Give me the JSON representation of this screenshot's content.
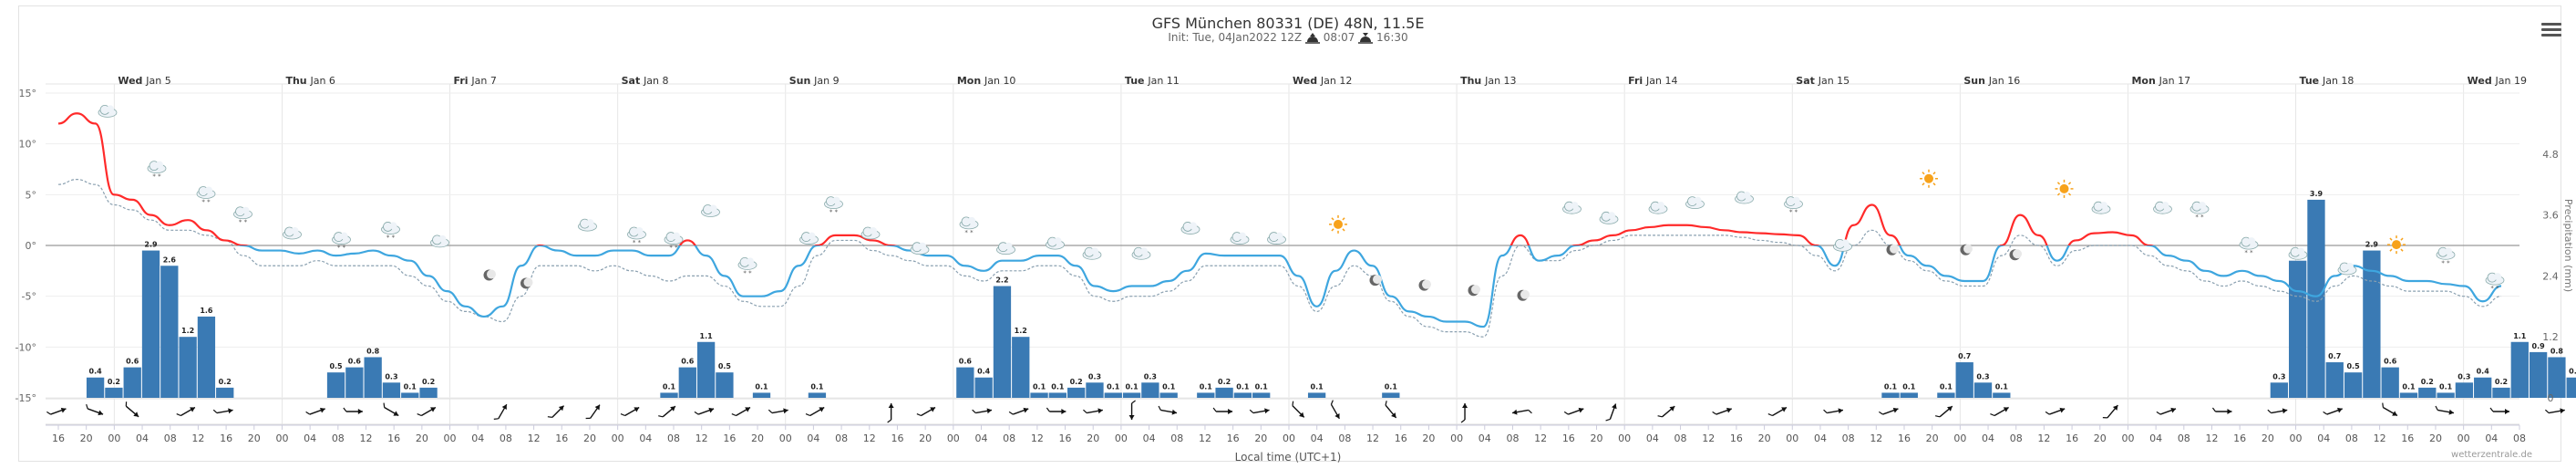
{
  "header": {
    "title": "GFS München 80331 (DE) 48N, 11.5E",
    "init_label": "Init: Tue, 04Jan2022 12Z",
    "sunrise": "08:07",
    "sunset": "16:30"
  },
  "footer": {
    "xlabel": "Local time (UTC+1)",
    "credit": "wetterzentrale.de"
  },
  "colors": {
    "temp_warm": "#ff2a2a",
    "temp_cold": "#3ea6df",
    "dewpoint": "#8aa0b0",
    "precip_bar": "#3a7ab4",
    "zero_line": "#999999"
  },
  "chart_data": {
    "type": "line+bar",
    "days": [
      {
        "dow": "Wed",
        "date": "Jan 5"
      },
      {
        "dow": "Thu",
        "date": "Jan 6"
      },
      {
        "dow": "Fri",
        "date": "Jan 7"
      },
      {
        "dow": "Sat",
        "date": "Jan 8"
      },
      {
        "dow": "Sun",
        "date": "Jan 9"
      },
      {
        "dow": "Mon",
        "date": "Jan 10"
      },
      {
        "dow": "Tue",
        "date": "Jan 11"
      },
      {
        "dow": "Wed",
        "date": "Jan 12"
      },
      {
        "dow": "Thu",
        "date": "Jan 13"
      },
      {
        "dow": "Fri",
        "date": "Jan 14"
      },
      {
        "dow": "Sat",
        "date": "Jan 15"
      },
      {
        "dow": "Sun",
        "date": "Jan 16"
      },
      {
        "dow": "Mon",
        "date": "Jan 17"
      },
      {
        "dow": "Tue",
        "date": "Jan 18"
      },
      {
        "dow": "Wed",
        "date": "Jan 19"
      }
    ],
    "first_hour_label": "16",
    "x_tick_labels": [
      "16",
      "20",
      "00",
      "04",
      "08",
      "12",
      "16",
      "20",
      "00",
      "04",
      "08",
      "12",
      "16",
      "20",
      "00",
      "04",
      "08",
      "12",
      "16",
      "20",
      "00",
      "04",
      "08",
      "12",
      "16",
      "20",
      "00",
      "04",
      "08",
      "12",
      "16",
      "20",
      "00",
      "04",
      "08",
      "12",
      "16",
      "20",
      "00",
      "04",
      "08",
      "12",
      "16",
      "20",
      "00",
      "04",
      "08",
      "12",
      "16",
      "20",
      "00",
      "04",
      "08",
      "12",
      "16",
      "20",
      "00",
      "04",
      "08",
      "12",
      "16",
      "20",
      "00",
      "04",
      "08",
      "12",
      "16",
      "20",
      "00",
      "04",
      "08",
      "12",
      "16",
      "20",
      "00",
      "04",
      "08",
      "12",
      "16",
      "20",
      "00",
      "04",
      "08",
      "12",
      "16",
      "20",
      "00",
      "04",
      "08"
    ],
    "y_left": {
      "ylim": [
        -15,
        15
      ],
      "ticks": [
        -15,
        -10,
        -5,
        0,
        5,
        10,
        15
      ],
      "tick_labels": [
        "-15°",
        "-10°",
        "-5°",
        "0°",
        "5°",
        "10°",
        "15°"
      ]
    },
    "y_right": {
      "label": "Precipitation (mm)",
      "ylim": [
        0,
        6
      ],
      "ticks": [
        "0",
        "1.2",
        "2.4",
        "3.6",
        "4.8"
      ]
    },
    "temperature": [
      12,
      13,
      12,
      5,
      4.5,
      3,
      2,
      2.5,
      1.5,
      0.5,
      0,
      -0.5,
      -0.5,
      -0.8,
      -0.5,
      -1,
      -0.8,
      -0.5,
      -1,
      -1.5,
      -3,
      -4.5,
      -6,
      -7,
      -6,
      -2,
      0,
      -0.5,
      -1,
      -1,
      -0.5,
      -0.5,
      -1,
      -1,
      0.5,
      -1,
      -3,
      -5,
      -5,
      -4.5,
      -2,
      0,
      1,
      1,
      0.5,
      0,
      -0.5,
      -1,
      -1,
      -2,
      -2.5,
      -1.5,
      -1.5,
      -1,
      -1,
      -2,
      -4,
      -4.5,
      -4,
      -4,
      -3.5,
      -2.5,
      -0.8,
      -1,
      -1,
      -1,
      -1,
      -3,
      -6,
      -2.5,
      -0.5,
      -2,
      -5,
      -6.5,
      -7,
      -7.5,
      -7.5,
      -8,
      -1,
      1,
      -1.5,
      -1,
      0,
      0.5,
      1,
      1.5,
      1.8,
      2,
      2,
      1.8,
      1.5,
      1.3,
      1.2,
      1.1,
      1,
      0,
      -2,
      2,
      4,
      1,
      -1,
      -2,
      -3,
      -3.5,
      -3.5,
      0,
      3,
      1,
      -1.5,
      0.5,
      1.2,
      1.3,
      1,
      0,
      -1,
      -1.5,
      -2.5,
      -3,
      -2.5,
      -3,
      -3.5,
      -4.5,
      -5,
      -3,
      -2,
      -2.5,
      -3,
      -3.5,
      -3.5,
      -3.8,
      -4,
      -5.5,
      -4
    ],
    "dewpoint": [
      6,
      6.5,
      6,
      4,
      3.5,
      2.5,
      1.5,
      1.5,
      1,
      0.5,
      -1,
      -2,
      -2,
      -2,
      -1.5,
      -2,
      -2,
      -2,
      -2,
      -3,
      -4,
      -5.5,
      -6.5,
      -7,
      -7.5,
      -5,
      -2,
      -2,
      -2,
      -2.5,
      -2,
      -2.5,
      -3,
      -3.5,
      -3,
      -3,
      -4,
      -5.5,
      -6,
      -6,
      -4,
      -1,
      0.5,
      0.5,
      -0.5,
      -1,
      -1.5,
      -2,
      -2,
      -3,
      -3.5,
      -2.5,
      -2.5,
      -2,
      -2,
      -3,
      -5,
      -5.5,
      -5,
      -5,
      -4.5,
      -3.5,
      -2,
      -2,
      -2,
      -2,
      -2,
      -4,
      -6.5,
      -4,
      -2,
      -3,
      -5.5,
      -7,
      -8,
      -8.5,
      -8.5,
      -9,
      -3,
      0,
      -1.5,
      -1.5,
      -0.5,
      0,
      0.5,
      1,
      1,
      1,
      1,
      1,
      1,
      0.8,
      0.5,
      0.3,
      0,
      -1,
      -2.5,
      0,
      1.5,
      0,
      -1.5,
      -2.5,
      -3.5,
      -4,
      -4,
      -1,
      1,
      0,
      -2,
      -0.5,
      0,
      0,
      0,
      -1,
      -2,
      -2.5,
      -3.5,
      -4,
      -3.5,
      -4,
      -4.5,
      -5,
      -5.5,
      -4,
      -3,
      -3.5,
      -4,
      -4.5,
      -4.5,
      -4.5,
      -5,
      -6,
      -5
    ],
    "precipitation": [
      {
        "i": 2,
        "v": 0.4
      },
      {
        "i": 3,
        "v": 0.2
      },
      {
        "i": 4,
        "v": 0.6
      },
      {
        "i": 5,
        "v": 2.9
      },
      {
        "i": 6,
        "v": 2.6
      },
      {
        "i": 7,
        "v": 1.2
      },
      {
        "i": 8,
        "v": 1.6
      },
      {
        "i": 9,
        "v": 0.2
      },
      {
        "i": 15,
        "v": 0.5
      },
      {
        "i": 16,
        "v": 0.6
      },
      {
        "i": 17,
        "v": 0.8
      },
      {
        "i": 18,
        "v": 0.3
      },
      {
        "i": 19,
        "v": 0.1
      },
      {
        "i": 20,
        "v": 0.2
      },
      {
        "i": 33,
        "v": 0.1
      },
      {
        "i": 34,
        "v": 0.6
      },
      {
        "i": 35,
        "v": 1.1
      },
      {
        "i": 36,
        "v": 0.5
      },
      {
        "i": 38,
        "v": 0.1
      },
      {
        "i": 41,
        "v": 0.1
      },
      {
        "i": 49,
        "v": 0.6
      },
      {
        "i": 50,
        "v": 0.4
      },
      {
        "i": 51,
        "v": 2.2
      },
      {
        "i": 52,
        "v": 1.2
      },
      {
        "i": 53,
        "v": 0.1
      },
      {
        "i": 54,
        "v": 0.1
      },
      {
        "i": 55,
        "v": 0.2
      },
      {
        "i": 56,
        "v": 0.3
      },
      {
        "i": 57,
        "v": 0.1
      },
      {
        "i": 58,
        "v": 0.1
      },
      {
        "i": 59,
        "v": 0.3
      },
      {
        "i": 60,
        "v": 0.1
      },
      {
        "i": 62,
        "v": 0.1
      },
      {
        "i": 63,
        "v": 0.2
      },
      {
        "i": 64,
        "v": 0.1
      },
      {
        "i": 65,
        "v": 0.1
      },
      {
        "i": 68,
        "v": 0.1
      },
      {
        "i": 72,
        "v": 0.1
      },
      {
        "i": 99,
        "v": 0.1
      },
      {
        "i": 100,
        "v": 0.1
      },
      {
        "i": 102,
        "v": 0.1
      },
      {
        "i": 103,
        "v": 0.7
      },
      {
        "i": 104,
        "v": 0.3
      },
      {
        "i": 105,
        "v": 0.1
      },
      {
        "i": 120,
        "v": 0.3
      },
      {
        "i": 121,
        "v": 2.7
      },
      {
        "i": 122,
        "v": 3.9
      },
      {
        "i": 123,
        "v": 0.7
      },
      {
        "i": 124,
        "v": 0.5
      },
      {
        "i": 125,
        "v": 2.9
      },
      {
        "i": 126,
        "v": 0.6
      },
      {
        "i": 127,
        "v": 0.1
      },
      {
        "i": 128,
        "v": 0.2
      },
      {
        "i": 129,
        "v": 0.1
      },
      {
        "i": 130,
        "v": 0.3
      },
      {
        "i": 131,
        "v": 0.4
      },
      {
        "i": 132,
        "v": 0.2
      },
      {
        "i": 133,
        "v": 1.1
      },
      {
        "i": 134,
        "v": 0.9
      },
      {
        "i": 135,
        "v": 0.8
      },
      {
        "i": 136,
        "v": 0.4
      }
    ],
    "wind_arrows": [
      {
        "i": 0,
        "deg": 70
      },
      {
        "i": 2,
        "deg": 110
      },
      {
        "i": 4,
        "deg": 130
      },
      {
        "i": 7,
        "deg": 60
      },
      {
        "i": 9,
        "deg": 80
      },
      {
        "i": 14,
        "deg": 70
      },
      {
        "i": 16,
        "deg": 90
      },
      {
        "i": 18,
        "deg": 120
      },
      {
        "i": 20,
        "deg": 60
      },
      {
        "i": 24,
        "deg": 30
      },
      {
        "i": 27,
        "deg": 45
      },
      {
        "i": 29,
        "deg": 35
      },
      {
        "i": 31,
        "deg": 60
      },
      {
        "i": 33,
        "deg": 50
      },
      {
        "i": 35,
        "deg": 70
      },
      {
        "i": 37,
        "deg": 60
      },
      {
        "i": 39,
        "deg": 80
      },
      {
        "i": 41,
        "deg": 60
      },
      {
        "i": 45,
        "deg": 0
      },
      {
        "i": 47,
        "deg": 60
      },
      {
        "i": 50,
        "deg": 80
      },
      {
        "i": 52,
        "deg": 70
      },
      {
        "i": 54,
        "deg": 90
      },
      {
        "i": 56,
        "deg": 80
      },
      {
        "i": 58,
        "deg": 180
      },
      {
        "i": 60,
        "deg": 100
      },
      {
        "i": 63,
        "deg": 90
      },
      {
        "i": 65,
        "deg": 80
      },
      {
        "i": 67,
        "deg": 135
      },
      {
        "i": 69,
        "deg": 150
      },
      {
        "i": 72,
        "deg": 140
      },
      {
        "i": 76,
        "deg": 0
      },
      {
        "i": 79,
        "deg": 260
      },
      {
        "i": 82,
        "deg": 70
      },
      {
        "i": 84,
        "deg": 20
      },
      {
        "i": 87,
        "deg": 50
      },
      {
        "i": 90,
        "deg": 70
      },
      {
        "i": 93,
        "deg": 60
      },
      {
        "i": 96,
        "deg": 80
      },
      {
        "i": 99,
        "deg": 70
      },
      {
        "i": 102,
        "deg": 50
      },
      {
        "i": 105,
        "deg": 60
      },
      {
        "i": 108,
        "deg": 70
      },
      {
        "i": 111,
        "deg": 40
      },
      {
        "i": 114,
        "deg": 70
      },
      {
        "i": 117,
        "deg": 90
      },
      {
        "i": 120,
        "deg": 80
      },
      {
        "i": 123,
        "deg": 70
      },
      {
        "i": 126,
        "deg": 120
      },
      {
        "i": 129,
        "deg": 100
      },
      {
        "i": 132,
        "deg": 90
      },
      {
        "i": 135,
        "deg": 80
      },
      {
        "i": 138,
        "deg": 110
      }
    ],
    "weather_icons": [
      {
        "i": 4,
        "kind": "cloud",
        "t": 12
      },
      {
        "i": 8,
        "kind": "cloud-snow",
        "t": 6.5
      },
      {
        "i": 12,
        "kind": "cloud-snow",
        "t": 4
      },
      {
        "i": 15,
        "kind": "cloud-snow",
        "t": 2
      },
      {
        "i": 19,
        "kind": "cloud",
        "t": 0
      },
      {
        "i": 23,
        "kind": "cloud-snow",
        "t": -0.5
      },
      {
        "i": 27,
        "kind": "cloud-snow",
        "t": 0.5
      },
      {
        "i": 31,
        "kind": "cloud",
        "t": -0.8
      },
      {
        "i": 35,
        "kind": "moon",
        "t": -4
      },
      {
        "i": 38,
        "kind": "moon",
        "t": -4.8
      },
      {
        "i": 43,
        "kind": "cloud",
        "t": 0.8
      },
      {
        "i": 47,
        "kind": "cloud-snow",
        "t": 0
      },
      {
        "i": 50,
        "kind": "cloud-snow",
        "t": -0.5
      },
      {
        "i": 53,
        "kind": "cloud",
        "t": 2.2
      },
      {
        "i": 56,
        "kind": "cloud-snow",
        "t": -3
      },
      {
        "i": 61,
        "kind": "cloud",
        "t": -0.5
      },
      {
        "i": 63,
        "kind": "cloud-snow",
        "t": 3
      },
      {
        "i": 66,
        "kind": "cloud",
        "t": 0
      },
      {
        "i": 70,
        "kind": "cloud",
        "t": -1.5
      },
      {
        "i": 74,
        "kind": "cloud-snow",
        "t": 1
      },
      {
        "i": 77,
        "kind": "cloud",
        "t": -1.5
      },
      {
        "i": 81,
        "kind": "cloud",
        "t": -1
      },
      {
        "i": 84,
        "kind": "cloud",
        "t": -2
      },
      {
        "i": 88,
        "kind": "cloud",
        "t": -2
      },
      {
        "i": 92,
        "kind": "cloud",
        "t": 0.5
      },
      {
        "i": 96,
        "kind": "cloud",
        "t": -0.5
      },
      {
        "i": 99,
        "kind": "cloud",
        "t": -0.5
      },
      {
        "i": 104,
        "kind": "sun",
        "t": 1
      },
      {
        "i": 107,
        "kind": "moon",
        "t": -4.5
      },
      {
        "i": 111,
        "kind": "moon",
        "t": -5
      },
      {
        "i": 115,
        "kind": "moon",
        "t": -5.5
      },
      {
        "i": 119,
        "kind": "moon",
        "t": -6
      },
      {
        "i": 123,
        "kind": "cloud",
        "t": 2.5
      },
      {
        "i": 126,
        "kind": "cloud",
        "t": 1.5
      },
      {
        "i": 130,
        "kind": "cloud",
        "t": 2.5
      },
      {
        "i": 133,
        "kind": "cloud",
        "t": 3
      },
      {
        "i": 137,
        "kind": "cloud",
        "t": 3.5
      },
      {
        "i": 141,
        "kind": "cloud-snow",
        "t": 3
      },
      {
        "i": 145,
        "kind": "cloud",
        "t": -1.2
      },
      {
        "i": 149,
        "kind": "moon",
        "t": -1.5
      },
      {
        "i": 152,
        "kind": "sun",
        "t": 5.5
      },
      {
        "i": 155,
        "kind": "moon",
        "t": -1.5
      },
      {
        "i": 159,
        "kind": "moon",
        "t": -2
      },
      {
        "i": 163,
        "kind": "sun",
        "t": 4.5
      },
      {
        "i": 166,
        "kind": "cloud",
        "t": 2.5
      },
      {
        "i": 171,
        "kind": "cloud",
        "t": 2.5
      },
      {
        "i": 174,
        "kind": "cloud-snow",
        "t": 2.5
      },
      {
        "i": 178,
        "kind": "cloud-snow",
        "t": -1
      },
      {
        "i": 182,
        "kind": "cloud",
        "t": -2
      },
      {
        "i": 186,
        "kind": "cloud",
        "t": -3.5
      },
      {
        "i": 190,
        "kind": "sun",
        "t": -1
      },
      {
        "i": 194,
        "kind": "cloud-snow",
        "t": -2
      },
      {
        "i": 198,
        "kind": "cloud-snow",
        "t": -4.5
      }
    ]
  }
}
